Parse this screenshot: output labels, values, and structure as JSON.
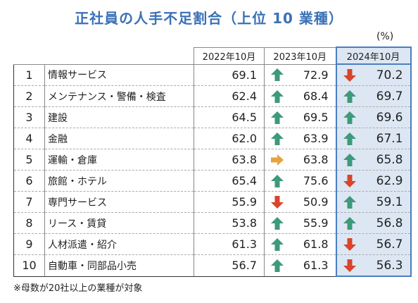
{
  "title": "正社員の人手不足割合（上位 10 業種）",
  "unit": "(%)",
  "note": "※母数が20社以上の業種が対象",
  "colors": {
    "title": "#3a71b6",
    "up": "#3d9a7b",
    "down": "#d9442a",
    "flat": "#e8a33c",
    "highlight": "#dde7f3"
  },
  "chart_data": {
    "type": "table",
    "title": "正社員の人手不足割合（上位 10 業種）",
    "columns": [
      "2022年10月",
      "2023年10月",
      "2024年10月"
    ],
    "rows": [
      {
        "rank": "1",
        "name": "情報サービス",
        "y2022": "69.1",
        "y2023": "72.9",
        "t2023": "up",
        "y2024": "70.2",
        "t2024": "down"
      },
      {
        "rank": "2",
        "name": "メンテナンス・警備・検査",
        "y2022": "62.4",
        "y2023": "68.4",
        "t2023": "up",
        "y2024": "69.7",
        "t2024": "up"
      },
      {
        "rank": "3",
        "name": "建設",
        "y2022": "64.5",
        "y2023": "69.5",
        "t2023": "up",
        "y2024": "69.6",
        "t2024": "up"
      },
      {
        "rank": "4",
        "name": "金融",
        "y2022": "62.0",
        "y2023": "63.9",
        "t2023": "up",
        "y2024": "67.1",
        "t2024": "up"
      },
      {
        "rank": "5",
        "name": "運輸・倉庫",
        "y2022": "63.8",
        "y2023": "63.8",
        "t2023": "flat",
        "y2024": "65.8",
        "t2024": "up"
      },
      {
        "rank": "6",
        "name": "旅館・ホテル",
        "y2022": "65.4",
        "y2023": "75.6",
        "t2023": "up",
        "y2024": "62.9",
        "t2024": "down"
      },
      {
        "rank": "7",
        "name": "専門サービス",
        "y2022": "55.9",
        "y2023": "50.9",
        "t2023": "down",
        "y2024": "59.1",
        "t2024": "up"
      },
      {
        "rank": "8",
        "name": "リース・賃貸",
        "y2022": "53.8",
        "y2023": "55.9",
        "t2023": "up",
        "y2024": "56.8",
        "t2024": "up"
      },
      {
        "rank": "9",
        "name": "人材派遣・紹介",
        "y2022": "61.3",
        "y2023": "61.8",
        "t2023": "up",
        "y2024": "56.7",
        "t2024": "down"
      },
      {
        "rank": "10",
        "name": "自動車・同部品小売",
        "y2022": "56.7",
        "y2023": "61.3",
        "t2023": "up",
        "y2024": "56.3",
        "t2024": "down"
      }
    ]
  }
}
